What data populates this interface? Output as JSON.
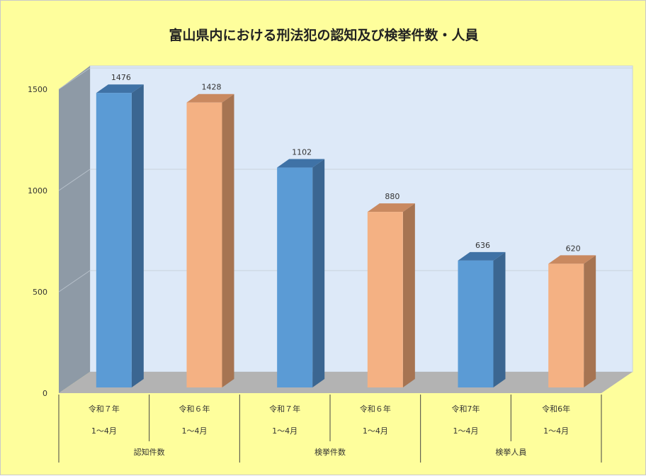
{
  "colors": {
    "background": "#fefe9c",
    "wall_back": "#dde9f8",
    "wall_side": "#8e9aa6",
    "floor": "#b3b3b3",
    "blue": "#5b9bd5",
    "blue_side": "#3b6691",
    "blue_top": "#3f72a6",
    "orange": "#f4b183",
    "orange_side": "#a67452",
    "orange_top": "#c98960"
  },
  "chart_data": {
    "type": "bar",
    "title": "富山県内における刑法犯の認知及び検挙件数・人員",
    "ylim": [
      0,
      1500
    ],
    "yticks": [
      "0",
      "500",
      "1000",
      "1500"
    ],
    "grid": true,
    "bars": [
      {
        "value": 1476,
        "label": "1476",
        "cat1": "令和７年",
        "cat2": "1～4月",
        "color": "blue"
      },
      {
        "value": 1428,
        "label": "1428",
        "cat1": "令和６年",
        "cat2": "1～4月",
        "color": "orange"
      },
      {
        "value": 1102,
        "label": "1102",
        "cat1": "令和７年",
        "cat2": "1～4月",
        "color": "blue"
      },
      {
        "value": 880,
        "label": "880",
        "cat1": "令和６年",
        "cat2": "1～4月",
        "color": "orange"
      },
      {
        "value": 636,
        "label": "636",
        "cat1": "令和7年",
        "cat2": "1～4月",
        "color": "blue"
      },
      {
        "value": 620,
        "label": "620",
        "cat1": "令和6年",
        "cat2": "1～4月",
        "color": "orange"
      }
    ],
    "groups": [
      "認知件数",
      "検挙件数",
      "検挙人員"
    ]
  }
}
